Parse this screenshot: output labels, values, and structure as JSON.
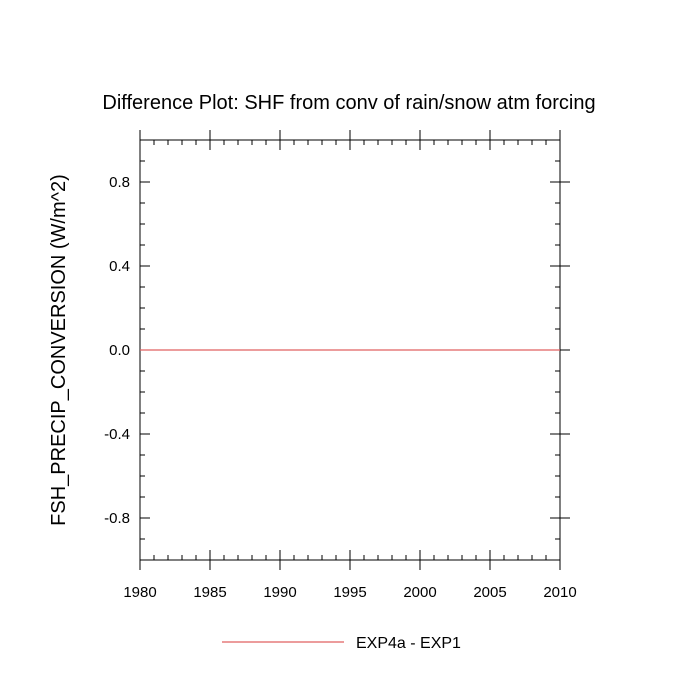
{
  "chart_data": {
    "type": "line",
    "title": "Difference Plot: SHF from conv of rain/snow atm forcing",
    "xlabel": "",
    "ylabel": "FSH_PRECIP_CONVERSION  (W/m^2)",
    "xlim": [
      1980,
      2010
    ],
    "ylim": [
      -1.0,
      1.0
    ],
    "x_ticks": [
      1980,
      1985,
      1990,
      1995,
      2000,
      2005,
      2010
    ],
    "x_tick_labels": [
      "1980",
      "1985",
      "1990",
      "1995",
      "2000",
      "2005",
      "2010"
    ],
    "y_ticks": [
      -0.8,
      -0.4,
      0.0,
      0.4,
      0.8
    ],
    "y_tick_labels": [
      "-0.8",
      "-0.4",
      "0.0",
      "0.4",
      "0.8"
    ],
    "grid": false,
    "legend_position": "bottom-center",
    "series": [
      {
        "name": "EXP4a - EXP1",
        "color": "#e06060",
        "x": [
          1980,
          2010
        ],
        "y": [
          0.0,
          0.0
        ]
      }
    ]
  }
}
